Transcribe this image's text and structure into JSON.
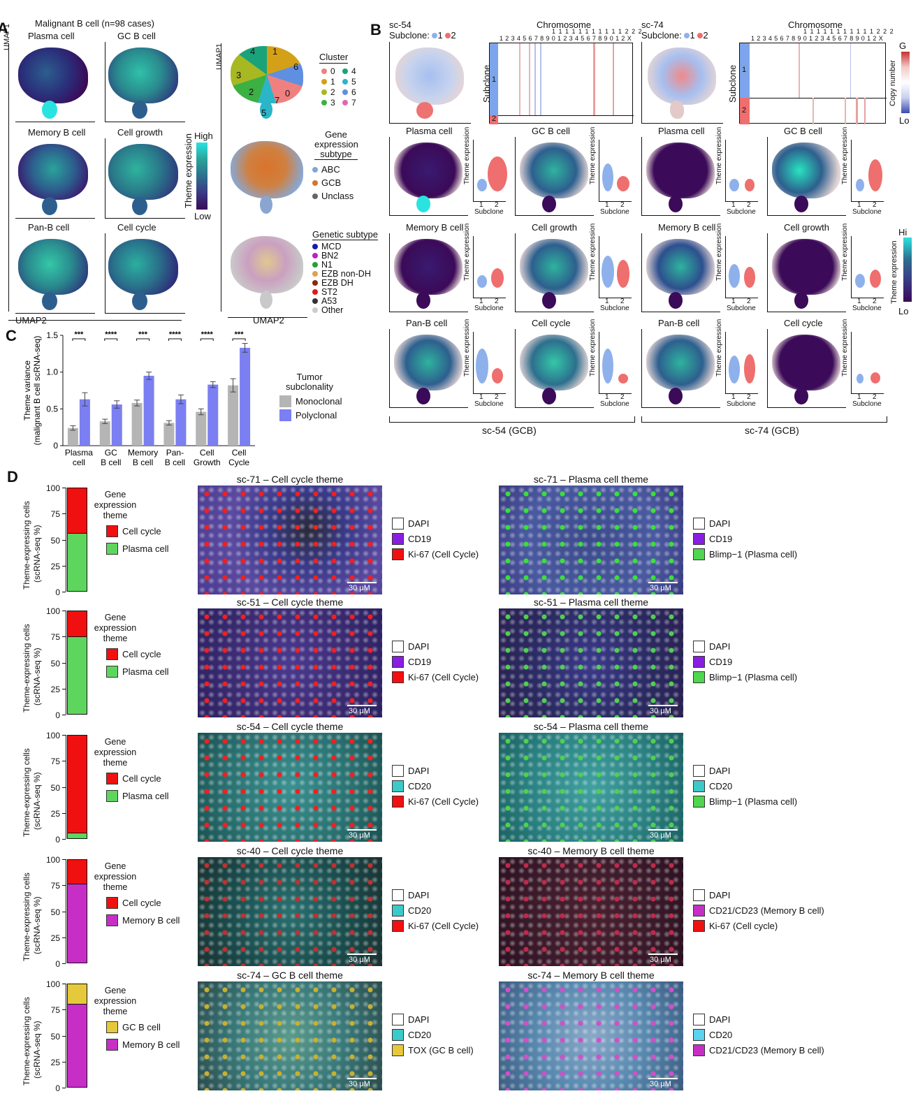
{
  "panelA": {
    "letter": "A",
    "header": "Malignant B cell (n=98 cases)",
    "titles": [
      "Plasma cell",
      "GC B cell",
      "Memory B cell",
      "Cell growth",
      "Pan-B cell",
      "Cell cycle"
    ],
    "umap1": "UMAP1",
    "umap2": "UMAP2",
    "colorbar_high": "High",
    "colorbar_low": "Low",
    "colorbar_label": "Theme expression",
    "cluster_title": "Cluster",
    "clusters": [
      {
        "label": "0",
        "color": "#f08080"
      },
      {
        "label": "4",
        "color": "#1aa37a"
      },
      {
        "label": "1",
        "color": "#d4a017"
      },
      {
        "label": "5",
        "color": "#2bb5c9"
      },
      {
        "label": "2",
        "color": "#a8b823"
      },
      {
        "label": "6",
        "color": "#5f8fe0"
      },
      {
        "label": "3",
        "color": "#3cb043"
      },
      {
        "label": "7",
        "color": "#e066b3"
      }
    ],
    "cluster_labels_on_map": [
      "4",
      "1",
      "6",
      "3",
      "2",
      "0",
      "7",
      "5"
    ],
    "gex_title": "Gene expression subtype",
    "gex": [
      {
        "label": "ABC",
        "color": "#7fa6d9"
      },
      {
        "label": "GCB",
        "color": "#d9732c"
      },
      {
        "label": "Unclass",
        "color": "#666666"
      }
    ],
    "genetic_title": "Genetic subtype",
    "genetic": [
      {
        "label": "MCD",
        "color": "#1a1aa8"
      },
      {
        "label": "BN2",
        "color": "#c21ec2"
      },
      {
        "label": "N1",
        "color": "#2e9e2e"
      },
      {
        "label": "EZB non-DH",
        "color": "#e0a24d"
      },
      {
        "label": "EZB DH",
        "color": "#8a2a0a"
      },
      {
        "label": "ST2",
        "color": "#e01a1a"
      },
      {
        "label": "A53",
        "color": "#333333"
      },
      {
        "label": "Other",
        "color": "#cccccc"
      }
    ]
  },
  "panelB": {
    "letter": "B",
    "sc54": {
      "name": "sc-54",
      "subclone": "Subclone:",
      "s1": "1",
      "s2": "2"
    },
    "sc74": {
      "name": "sc-74",
      "subclone": "Subclone:",
      "s1": "1",
      "s2": "2"
    },
    "chromosome": "Chromosome",
    "chrom_row1": "1 1 1 1 1 1 1 1 1 1 1 2 2 2",
    "chrom_row2": "1 2 3 4 5 6 7 8 9 0 1 2 3 4 5 6 7 8 9 0 1 2 X",
    "subclone_axis": "Subclone",
    "copy_number": "Copy number",
    "gain": "G",
    "loss": "Lo",
    "titles": [
      "Plasma cell",
      "GC B cell",
      "Memory B cell",
      "Cell growth",
      "Pan-B cell",
      "Cell cycle"
    ],
    "theme_expression": "Theme expression",
    "violin_x": [
      "1",
      "2"
    ],
    "violin_xlabel": "Subclone",
    "hi": "Hi",
    "lo": "Lo",
    "footer_left": "sc-54 (GCB)",
    "footer_right": "sc-74 (GCB)"
  },
  "panelC": {
    "letter": "C",
    "chart_data": {
      "type": "bar",
      "categories": [
        "Plasma cell",
        "GC B cell",
        "Memory B cell",
        "Pan-B cell",
        "Cell Growth",
        "Cell Cycle"
      ],
      "series": [
        {
          "name": "Monoclonal",
          "color": "#b5b5b5",
          "values": [
            0.24,
            0.33,
            0.58,
            0.31,
            0.46,
            0.82
          ],
          "errors": [
            0.03,
            0.03,
            0.04,
            0.03,
            0.04,
            0.09
          ]
        },
        {
          "name": "Polyclonal",
          "color": "#7b7ff2",
          "values": [
            0.63,
            0.56,
            0.95,
            0.63,
            0.83,
            1.33
          ],
          "errors": [
            0.09,
            0.05,
            0.05,
            0.06,
            0.04,
            0.06
          ]
        }
      ],
      "significance": [
        "***",
        "****",
        "***",
        "****",
        "****",
        "***"
      ],
      "ylabel": "Theme variance (malignant B cell scRNA-seq)",
      "yticks": [
        "0",
        "0.5",
        "1.0",
        "1.5"
      ],
      "ylim": [
        0,
        1.5
      ],
      "legend_title": "Tumor subclonality"
    },
    "xlabels": [
      [
        "Plasma",
        "cell"
      ],
      [
        "GC",
        "B cell"
      ],
      [
        "Memory",
        "B cell"
      ],
      [
        "Pan-",
        "B cell"
      ],
      [
        "Cell",
        "Growth"
      ],
      [
        "Cell",
        "Cycle"
      ]
    ]
  },
  "panelD": {
    "letter": "D",
    "ylabel1": "Theme-expressing cells",
    "ylabel2": "(scRNA-seq %)",
    "yticks": [
      "100",
      "75",
      "50",
      "25",
      "0"
    ],
    "legend_title": "Gene expression theme",
    "scale": "30 μM",
    "rows": [
      {
        "bar": [
          {
            "label": "Cell cycle",
            "color": "#f01010",
            "value": 44
          },
          {
            "label": "Plasma cell",
            "color": "#5ed65e",
            "value": 56
          }
        ],
        "left_title": "sc-71 – Cell cycle theme",
        "left_markers": [
          {
            "label": "DAPI",
            "color": "#ffffff"
          },
          {
            "label": "CD19",
            "color": "#8a1ee0"
          },
          {
            "label": "Ki-67 (Cell Cycle)",
            "color": "#f01010"
          }
        ],
        "right_title": "sc-71 – Plasma cell theme",
        "right_markers": [
          {
            "label": "DAPI",
            "color": "#ffffff"
          },
          {
            "label": "CD19",
            "color": "#8a1ee0"
          },
          {
            "label": "Blimp−1 (Plasma cell)",
            "color": "#4ed64e"
          }
        ]
      },
      {
        "bar": [
          {
            "label": "Cell cycle",
            "color": "#f01010",
            "value": 25
          },
          {
            "label": "Plasma cell",
            "color": "#5ed65e",
            "value": 75
          }
        ],
        "left_title": "sc-51 – Cell cycle theme",
        "left_markers": [
          {
            "label": "DAPI",
            "color": "#ffffff"
          },
          {
            "label": "CD19",
            "color": "#8a1ee0"
          },
          {
            "label": "Ki-67 (Cell Cycle)",
            "color": "#f01010"
          }
        ],
        "right_title": "sc-51 – Plasma cell theme",
        "right_markers": [
          {
            "label": "DAPI",
            "color": "#ffffff"
          },
          {
            "label": "CD19",
            "color": "#8a1ee0"
          },
          {
            "label": "Blimp−1 (Plasma cell)",
            "color": "#4ed64e"
          }
        ]
      },
      {
        "bar": [
          {
            "label": "Cell cycle",
            "color": "#f01010",
            "value": 95
          },
          {
            "label": "Plasma cell",
            "color": "#5ed65e",
            "value": 5
          }
        ],
        "left_title": "sc-54 – Cell cycle theme",
        "left_markers": [
          {
            "label": "DAPI",
            "color": "#ffffff"
          },
          {
            "label": "CD20",
            "color": "#3cc9c9"
          },
          {
            "label": "Ki-67 (Cell Cycle)",
            "color": "#f01010"
          }
        ],
        "right_title": "sc-54 – Plasma cell theme",
        "right_markers": [
          {
            "label": "DAPI",
            "color": "#ffffff"
          },
          {
            "label": "CD20",
            "color": "#3cc9c9"
          },
          {
            "label": "Blimp−1 (Plasma cell)",
            "color": "#4ed64e"
          }
        ]
      },
      {
        "bar": [
          {
            "label": "Cell cycle",
            "color": "#f01010",
            "value": 24
          },
          {
            "label": "Memory B cell",
            "color": "#c62ec6",
            "value": 76
          }
        ],
        "left_title": "sc-40 – Cell cycle theme",
        "left_markers": [
          {
            "label": "DAPI",
            "color": "#ffffff"
          },
          {
            "label": "CD20",
            "color": "#3cc9c9"
          },
          {
            "label": "Ki-67 (Cell Cycle)",
            "color": "#f01010"
          }
        ],
        "right_title": "sc-40 – Memory B cell theme",
        "right_markers": [
          {
            "label": "DAPI",
            "color": "#ffffff"
          },
          {
            "label": "CD21/CD23 (Memory B cell)",
            "color": "#c62ec6"
          },
          {
            "label": "Ki-67 (Cell cycle)",
            "color": "#f01010"
          }
        ]
      },
      {
        "bar": [
          {
            "label": "GC B cell",
            "color": "#e6c93a",
            "value": 20
          },
          {
            "label": "Memory B cell",
            "color": "#c62ec6",
            "value": 80
          }
        ],
        "left_title": "sc-74 – GC B cell theme",
        "left_markers": [
          {
            "label": "DAPI",
            "color": "#ffffff"
          },
          {
            "label": "CD20",
            "color": "#3cc9c9"
          },
          {
            "label": "TOX (GC B cell)",
            "color": "#e6c93a"
          }
        ],
        "right_title": "sc-74 – Memory B cell theme",
        "right_markers": [
          {
            "label": "DAPI",
            "color": "#ffffff"
          },
          {
            "label": "CD20",
            "color": "#5ad2f0"
          },
          {
            "label": "CD21/CD23 (Memory B cell)",
            "color": "#c62ec6"
          }
        ]
      }
    ]
  }
}
